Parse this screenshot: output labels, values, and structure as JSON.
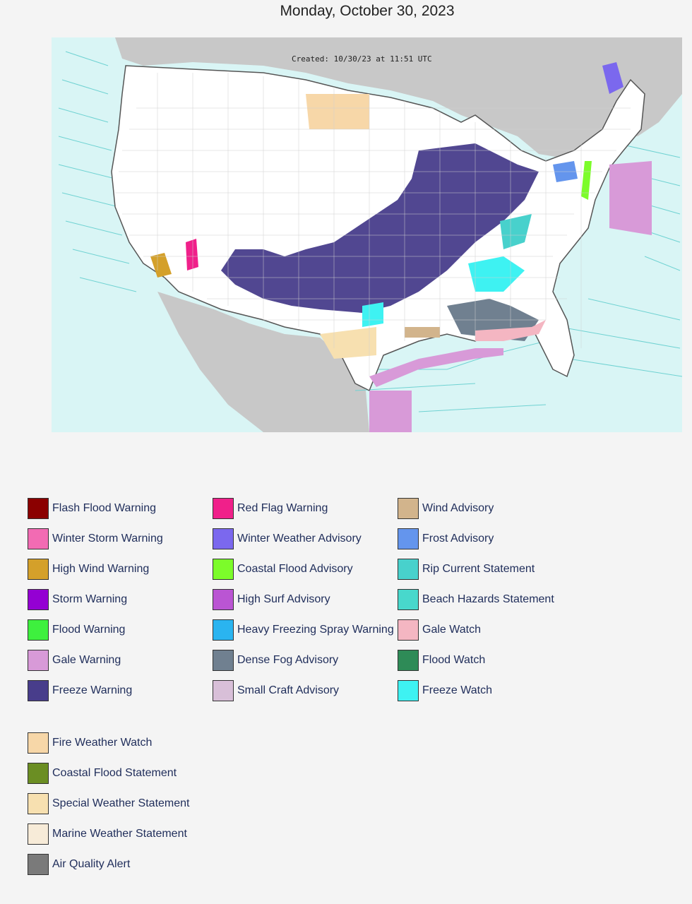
{
  "page": {
    "date": "Monday, October 30, 2023"
  },
  "map": {
    "created_text": "Created: 10/30/23 at 11:51 UTC"
  },
  "colors": {
    "ocean": "#d9f5f5",
    "land": "#ffffff",
    "foreign_land": "#c8c8c8",
    "marine_zone_lines": "#6fd2d2",
    "county_lines": "#bbbbbb"
  },
  "legend": {
    "columns": [
      [
        {
          "label": "Flash Flood Warning",
          "color": "#8b0000"
        },
        {
          "label": "Winter Storm Warning",
          "color": "#f26bb3"
        },
        {
          "label": "High Wind Warning",
          "color": "#d4a02a"
        },
        {
          "label": "Storm Warning",
          "color": "#9400d3"
        },
        {
          "label": "Flood Warning",
          "color": "#3ef03e"
        },
        {
          "label": "Gale Warning",
          "color": "#d89ad8"
        },
        {
          "label": "Freeze Warning",
          "color": "#483d8b"
        }
      ],
      [
        {
          "label": "Red Flag Warning",
          "color": "#f0208a"
        },
        {
          "label": "Winter Weather Advisory",
          "color": "#7b68ee"
        },
        {
          "label": "Coastal Flood Advisory",
          "color": "#7cfc2a"
        },
        {
          "label": "High Surf Advisory",
          "color": "#ba55d3"
        },
        {
          "label": "Heavy Freezing Spray Warning",
          "color": "#2ab4f0"
        },
        {
          "label": "Dense Fog Advisory",
          "color": "#708090"
        },
        {
          "label": "Small Craft Advisory",
          "color": "#d8bfd8"
        }
      ],
      [
        {
          "label": "Wind Advisory",
          "color": "#d2b48c"
        },
        {
          "label": "Frost Advisory",
          "color": "#6495ed"
        },
        {
          "label": "Rip Current Statement",
          "color": "#48d1cc"
        },
        {
          "label": "Beach Hazards Statement",
          "color": "#48d8cc"
        },
        {
          "label": "Gale Watch",
          "color": "#f4b6c2"
        },
        {
          "label": "Flood Watch",
          "color": "#2e8b57"
        },
        {
          "label": "Freeze Watch",
          "color": "#3ef2f2"
        }
      ]
    ],
    "extra": [
      {
        "label": "Fire Weather Watch",
        "color": "#f7d7a8"
      },
      {
        "label": "Coastal Flood Statement",
        "color": "#6b8e23"
      },
      {
        "label": "Special Weather Statement",
        "color": "#f7e0b0"
      },
      {
        "label": "Marine Weather Statement",
        "color": "#f7ebd8"
      },
      {
        "label": "Air Quality Alert",
        "color": "#7a7a7a"
      }
    ]
  }
}
